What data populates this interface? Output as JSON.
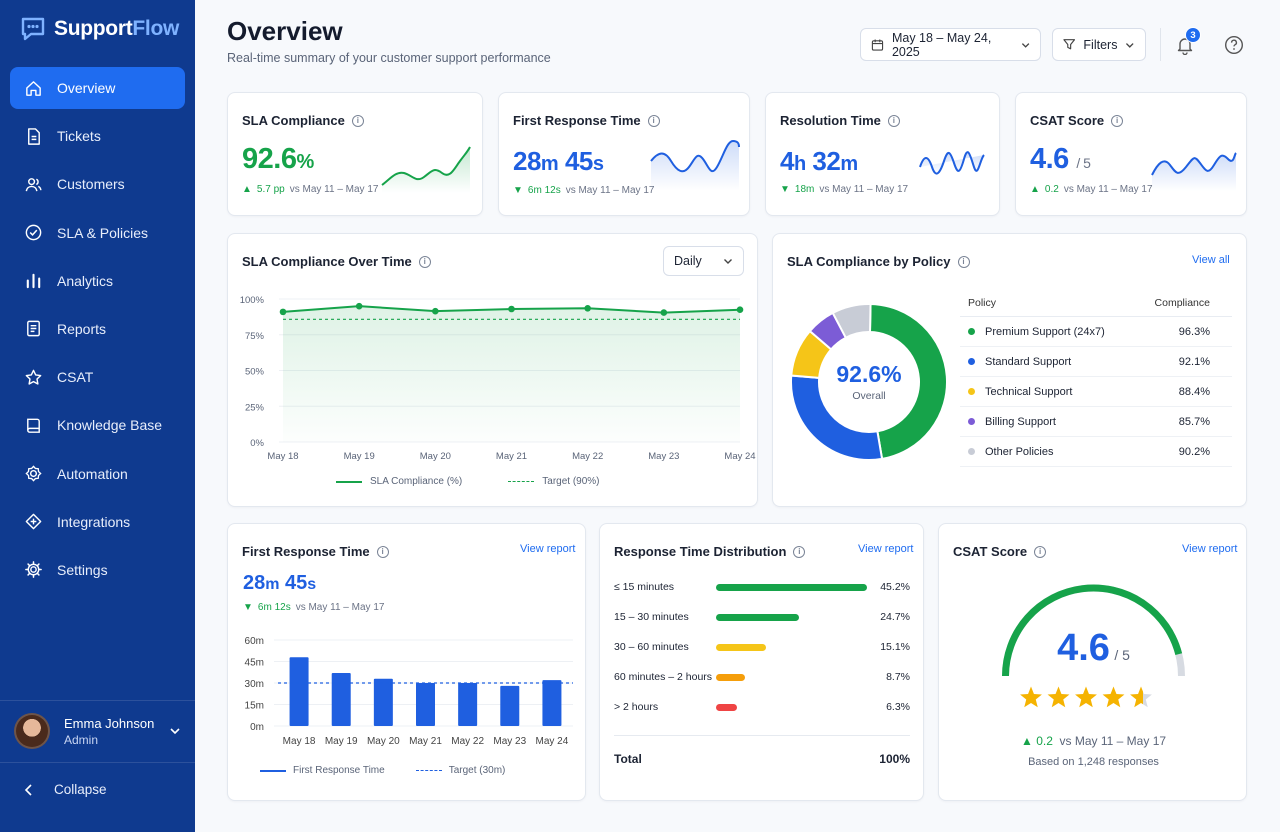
{
  "app": {
    "name_a": "Support",
    "name_b": "Flow"
  },
  "nav": [
    {
      "label": "Overview",
      "icon": "home-icon",
      "active": true
    },
    {
      "label": "Tickets",
      "icon": "ticket-icon"
    },
    {
      "label": "Customers",
      "icon": "users-icon"
    },
    {
      "label": "SLA & Policies",
      "icon": "check-circle-icon"
    },
    {
      "label": "Analytics",
      "icon": "bar-chart-icon"
    },
    {
      "label": "Reports",
      "icon": "report-icon"
    },
    {
      "label": "CSAT",
      "icon": "star-icon"
    },
    {
      "label": "Knowledge Base",
      "icon": "book-icon"
    },
    {
      "label": "Automation",
      "icon": "automation-icon"
    },
    {
      "label": "Integrations",
      "icon": "integration-icon"
    },
    {
      "label": "Settings",
      "icon": "gear-icon"
    }
  ],
  "user": {
    "name": "Emma Johnson",
    "role": "Admin"
  },
  "collapse_label": "Collapse",
  "header": {
    "title": "Overview",
    "subtitle": "Real-time summary of your customer support performance",
    "date_range": "May 18 – May 24, 2025",
    "filters_label": "Filters",
    "notification_count": "3"
  },
  "kpis": {
    "sla": {
      "title": "SLA Compliance",
      "value": "92.6",
      "unit": "%",
      "delta": "5.7 pp",
      "compare": "vs May 11 – May 17"
    },
    "frt": {
      "title": "First Response Time",
      "v1": "28",
      "u1": "m",
      "v2": "45",
      "u2": "s",
      "delta": "6m 12s",
      "compare": "vs May 11 – May 17"
    },
    "res": {
      "title": "Resolution Time",
      "v1": "4",
      "u1": "h",
      "v2": "32",
      "u2": "m",
      "delta": "18m",
      "compare": "vs May 11 – May 17"
    },
    "csat": {
      "title": "CSAT Score",
      "value": "4.6",
      "sub": "/ 5",
      "delta": "0.2",
      "compare": "vs May 11 – May 17"
    }
  },
  "sla_over_time": {
    "title": "SLA Compliance Over Time",
    "period": "Daily",
    "legend_series": "SLA Compliance (%)",
    "legend_target": "Target (90%)"
  },
  "sla_by_policy": {
    "title": "SLA Compliance by Policy",
    "view_all": "View all",
    "center_value": "92.6%",
    "center_label": "Overall",
    "col_policy": "Policy",
    "col_compliance": "Compliance"
  },
  "frt_card": {
    "title": "First Response Time",
    "view": "View report",
    "v1": "28",
    "u1": "m",
    "v2": "45",
    "u2": "s",
    "delta": "6m 12s",
    "compare": "vs May 11 – May 17",
    "legend_series": "First Response Time",
    "legend_target": "Target (30m)"
  },
  "rtd": {
    "title": "Response Time Distribution",
    "view": "View report",
    "total_label": "Total",
    "total_value": "100%"
  },
  "csat_card": {
    "title": "CSAT Score",
    "view": "View report",
    "value": "4.6",
    "sub": "/ 5",
    "delta": "0.2",
    "compare": "vs May 11 – May 17",
    "based_on": "Based on 1,248 responses",
    "rating": 4.6
  },
  "chart_data": [
    {
      "type": "line",
      "title": "SLA Compliance Over Time",
      "categories": [
        "May 18",
        "May 19",
        "May 20",
        "May 21",
        "May 22",
        "May 23",
        "May 24"
      ],
      "series": [
        {
          "name": "SLA Compliance (%)",
          "values": [
            91,
            95,
            91.5,
            93,
            93.5,
            90.5,
            92.5
          ],
          "color": "#16a34a"
        }
      ],
      "target": {
        "name": "Target (90%)",
        "value": 90
      },
      "yticks": [
        "100%",
        "75%",
        "50%",
        "25%",
        "0%"
      ],
      "ylim": [
        0,
        100
      ]
    },
    {
      "type": "pie",
      "title": "SLA Compliance by Policy",
      "slices": [
        {
          "name": "Premium Support (24x7)",
          "compliance": "96.3%",
          "share": 47,
          "color": "#16a34a"
        },
        {
          "name": "Standard Support",
          "compliance": "92.1%",
          "share": 29,
          "color": "#1f5fe0"
        },
        {
          "name": "Technical Support",
          "compliance": "88.4%",
          "share": 10,
          "color": "#f5c518"
        },
        {
          "name": "Billing Support",
          "compliance": "85.7%",
          "share": 6,
          "color": "#7c5cd6"
        },
        {
          "name": "Other Policies",
          "compliance": "90.2%",
          "share": 8,
          "color": "#c8ccd6"
        }
      ]
    },
    {
      "type": "bar",
      "title": "First Response Time",
      "categories": [
        "May 18",
        "May 19",
        "May 20",
        "May 21",
        "May 22",
        "May 23",
        "May 24"
      ],
      "values": [
        48,
        37,
        33,
        30,
        30,
        28,
        32
      ],
      "target": 30,
      "yticks": [
        "60m",
        "45m",
        "30m",
        "15m",
        "0m"
      ],
      "ylim": [
        0,
        60
      ]
    },
    {
      "type": "bar",
      "title": "Response Time Distribution",
      "categories": [
        "≤ 15 minutes",
        "15 – 30 minutes",
        "30 – 60 minutes",
        "60 minutes – 2 hours",
        "> 2 hours"
      ],
      "values": [
        45.2,
        24.7,
        15.1,
        8.7,
        6.3
      ],
      "labels": [
        "45.2%",
        "24.7%",
        "15.1%",
        "8.7%",
        "6.3%"
      ],
      "colors": [
        "#16a34a",
        "#16a34a",
        "#f5c518",
        "#f59e0b",
        "#ef4444"
      ]
    }
  ]
}
